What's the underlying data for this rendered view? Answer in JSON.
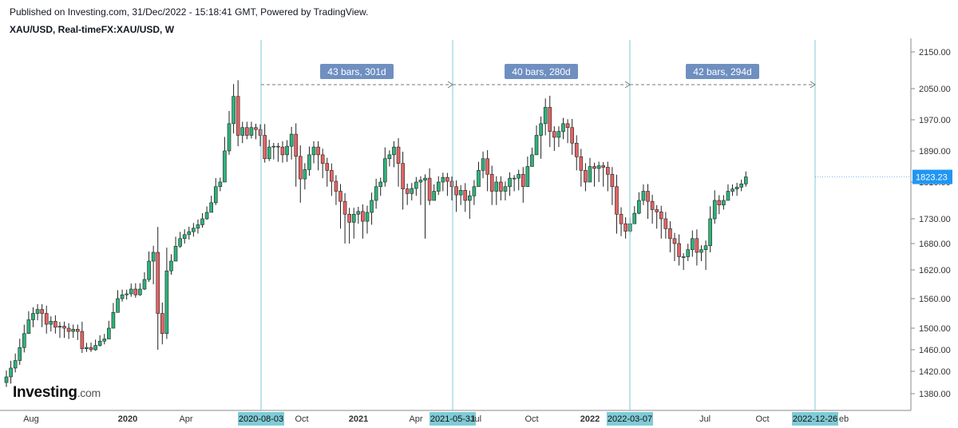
{
  "header": {
    "published": "Published on Investing.com, 31/Dec/2022 - 15:18:41 GMT, Powered by TradingView.",
    "symbol": "XAU/USD, Real-timeFX:XAU/USD, W"
  },
  "logo": {
    "main": "Investing",
    "suffix": ".com"
  },
  "colors": {
    "up": "#26a69a",
    "up_fill": "#2db37a",
    "down": "#ef5350",
    "down_fill": "#e46363",
    "marker_line": "#7fcbd6",
    "marker_label_bg": "#7fcbd6",
    "range_label_bg": "#6f8fc0",
    "last_price_bg": "#2196f3",
    "axis": "#555555"
  },
  "chart_data": {
    "type": "candlestick",
    "timeframe": "W",
    "y_axis": {
      "ticks": [
        "2150.00",
        "2050.00",
        "1970.00",
        "1890.00",
        "1810.00",
        "1730.00",
        "1680.00",
        "1620.00",
        "1560.00",
        "1500.00",
        "1460.00",
        "1420.00",
        "1380.00"
      ],
      "last_price": "1823.23"
    },
    "x_axis": {
      "ticks": [
        "Aug",
        "2020",
        "Apr",
        "Oct",
        "2021",
        "Apr",
        "Jul",
        "Oct",
        "2022",
        "Jul",
        "Oct",
        "eb"
      ]
    },
    "markers": [
      "2020-08-03",
      "2021-05-31",
      "2022-03-07",
      "2022-12-26"
    ],
    "ranges": [
      {
        "label": "43 bars, 301d",
        "from": "2020-08-03",
        "to": "2021-05-31"
      },
      {
        "label": "40 bars, 280d",
        "from": "2021-05-31",
        "to": "2022-03-07"
      },
      {
        "label": "42 bars, 294d",
        "from": "2022-03-07",
        "to": "2022-12-26"
      }
    ],
    "closes": [
      1410,
      1426,
      1440,
      1464,
      1490,
      1517,
      1530,
      1538,
      1530,
      1508,
      1514,
      1502,
      1504,
      1500,
      1494,
      1498,
      1494,
      1462,
      1464,
      1460,
      1468,
      1476,
      1480,
      1500,
      1532,
      1560,
      1568,
      1570,
      1580,
      1568,
      1580,
      1600,
      1640,
      1660,
      1530,
      1490,
      1618,
      1640,
      1674,
      1690,
      1698,
      1704,
      1711,
      1718,
      1730,
      1744,
      1765,
      1800,
      1810,
      1890,
      1960,
      2030,
      1930,
      1950,
      1930,
      1950,
      1945,
      1930,
      1870,
      1900,
      1902,
      1900,
      1880,
      1902,
      1933,
      1876,
      1818,
      1842,
      1880,
      1900,
      1880,
      1858,
      1840,
      1812,
      1790,
      1768,
      1740,
      1723,
      1740,
      1746,
      1725,
      1744,
      1770,
      1800,
      1810,
      1870,
      1880,
      1900,
      1858,
      1795,
      1785,
      1796,
      1810,
      1815,
      1820,
      1770,
      1790,
      1810,
      1822,
      1812,
      1800,
      1782,
      1792,
      1770,
      1780,
      1800,
      1840,
      1870,
      1830,
      1790,
      1810,
      1790,
      1800,
      1820,
      1820,
      1830,
      1800,
      1850,
      1880,
      1930,
      1960,
      2002,
      1940,
      1925,
      1940,
      1960,
      1950,
      1910,
      1875,
      1840,
      1810,
      1850,
      1845,
      1852,
      1848,
      1830,
      1800,
      1740,
      1720,
      1705,
      1720,
      1742,
      1770,
      1790,
      1768,
      1750,
      1745,
      1730,
      1710,
      1690,
      1680,
      1650,
      1650,
      1666,
      1690,
      1660,
      1666,
      1675,
      1730,
      1770,
      1760,
      1770,
      1790,
      1795,
      1799,
      1806,
      1823.23
    ],
    "lows": [
      1392,
      1398,
      1418,
      1432,
      1455,
      1492,
      1502,
      1516,
      1502,
      1490,
      1494,
      1490,
      1482,
      1482,
      1480,
      1482,
      1478,
      1454,
      1456,
      1456,
      1458,
      1466,
      1470,
      1480,
      1510,
      1546,
      1554,
      1558,
      1564,
      1562,
      1566,
      1578,
      1595,
      1590,
      1460,
      1470,
      1480,
      1610,
      1640,
      1670,
      1680,
      1688,
      1694,
      1700,
      1712,
      1728,
      1746,
      1760,
      1790,
      1815,
      1880,
      1935,
      1902,
      1910,
      1920,
      1922,
      1920,
      1902,
      1860,
      1864,
      1868,
      1862,
      1860,
      1862,
      1868,
      1800,
      1765,
      1794,
      1826,
      1858,
      1840,
      1820,
      1800,
      1780,
      1760,
      1710,
      1680,
      1680,
      1690,
      1720,
      1690,
      1700,
      1718,
      1752,
      1780,
      1800,
      1850,
      1848,
      1800,
      1750,
      1760,
      1770,
      1780,
      1760,
      1690,
      1760,
      1770,
      1782,
      1790,
      1780,
      1770,
      1745,
      1760,
      1745,
      1730,
      1760,
      1800,
      1820,
      1790,
      1760,
      1760,
      1770,
      1770,
      1780,
      1790,
      1792,
      1765,
      1800,
      1850,
      1880,
      1870,
      1930,
      1900,
      1890,
      1900,
      1920,
      1910,
      1880,
      1840,
      1800,
      1790,
      1810,
      1800,
      1810,
      1800,
      1790,
      1760,
      1700,
      1695,
      1690,
      1700,
      1720,
      1740,
      1760,
      1730,
      1720,
      1710,
      1690,
      1690,
      1660,
      1640,
      1630,
      1620,
      1640,
      1650,
      1630,
      1640,
      1620,
      1660,
      1720,
      1740,
      1750,
      1770,
      1780,
      1780,
      1790,
      1800
    ]
  }
}
